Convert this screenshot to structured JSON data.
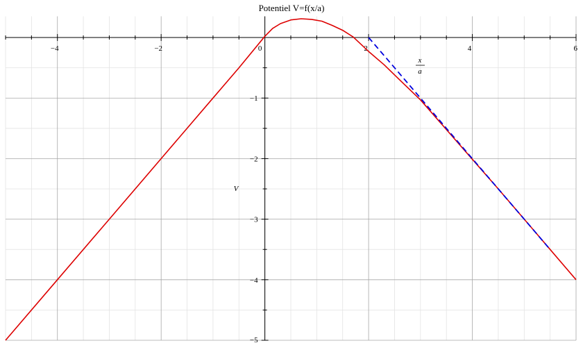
{
  "chart_data": {
    "type": "line",
    "title": "Potentiel V=f(x/a)",
    "xlabel": "",
    "ylabel": "V",
    "xlim": [
      -5,
      6
    ],
    "ylim": [
      -5,
      0.35
    ],
    "x_ticks": [
      -4,
      -2,
      0,
      2,
      4,
      6
    ],
    "x_tick_labels": [
      "−4",
      "−2",
      "0",
      "2",
      "4",
      "6"
    ],
    "y_ticks": [
      -1,
      -2,
      -3,
      -4,
      -5
    ],
    "y_tick_labels": [
      "−1",
      "−2",
      "−3",
      "−4",
      "−5"
    ],
    "grid": true,
    "annotation": {
      "numerator": "x",
      "denominator": "a"
    },
    "series": [
      {
        "color": "#dd0000",
        "style": "solid",
        "x": [
          -5,
          -4,
          -3,
          -2,
          -1,
          -0.5,
          0,
          0.15,
          0.3,
          0.5,
          0.7,
          0.9,
          1.1,
          1.3,
          1.5,
          1.7,
          2.0,
          2.3,
          2.6,
          3.0,
          3.5,
          4.0,
          4.5,
          5.0,
          5.5,
          6.0
        ],
        "y": [
          -5,
          -4,
          -3,
          -2,
          -1,
          -0.5,
          0.02,
          0.15,
          0.23,
          0.29,
          0.31,
          0.3,
          0.27,
          0.2,
          0.12,
          0.01,
          -0.23,
          -0.45,
          -0.7,
          -1.03,
          -1.52,
          -2.01,
          -2.5,
          -3.0,
          -3.5,
          -4.0
        ]
      },
      {
        "color": "#0000dd",
        "style": "dashed",
        "x": [
          2,
          2.5,
          3,
          3.5,
          4,
          4.5,
          5,
          5.5
        ],
        "y": [
          0,
          -0.5,
          -1,
          -1.5,
          -2,
          -2.5,
          -3,
          -3.5
        ]
      }
    ]
  }
}
